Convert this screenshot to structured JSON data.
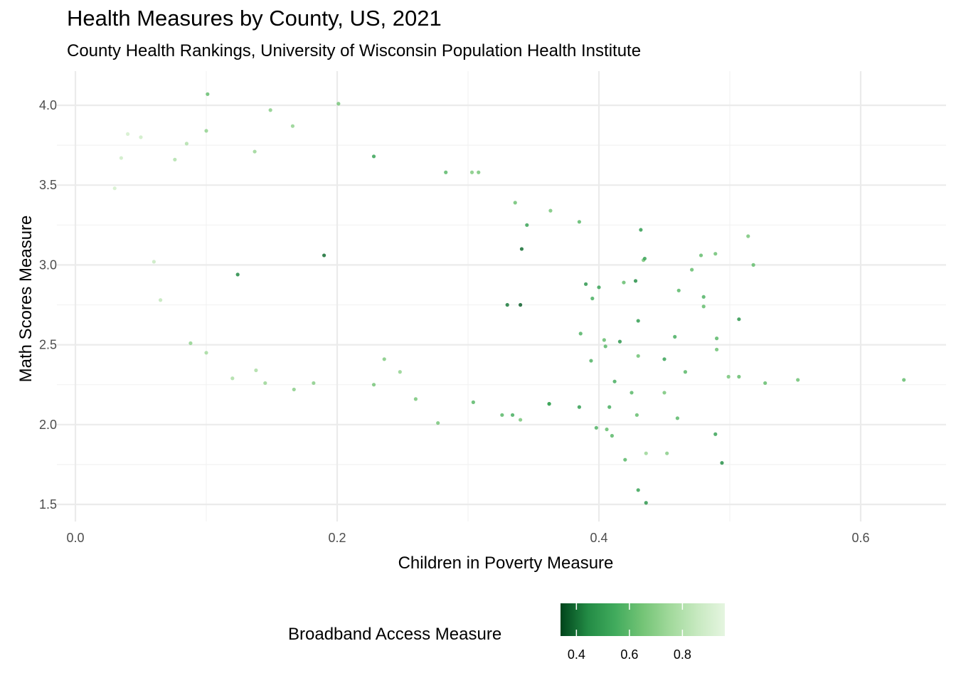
{
  "chart_data": {
    "type": "scatter",
    "title": "Health Measures by County, US, 2021",
    "subtitle": "County Health Rankings, University of Wisconsin Population Health Institute",
    "xlabel": "Children in Poverty Measure",
    "ylabel": "Math Scores Measure",
    "xlim": [
      0.0,
      0.66
    ],
    "ylim": [
      1.45,
      4.12
    ],
    "x_ticks": [
      0.0,
      0.2,
      0.4,
      0.6
    ],
    "x_tick_labels": [
      "0.0",
      "0.2",
      "0.4",
      "0.6"
    ],
    "y_ticks": [
      1.5,
      2.0,
      2.5,
      3.0,
      3.5,
      4.0
    ],
    "y_tick_labels": [
      "1.5",
      "2.0",
      "2.5",
      "3.0",
      "3.5",
      "4.0"
    ],
    "grid": true,
    "legend": {
      "title": "Broadband Access Measure",
      "placement": "bottom",
      "range": [
        0.34,
        0.96
      ],
      "ticks": [
        0.4,
        0.6,
        0.8
      ],
      "tick_labels": [
        "0.4",
        "0.6",
        "0.8"
      ],
      "colors": [
        "#00441b",
        "#238b45",
        "#41ab5d",
        "#74c476",
        "#a1d99b",
        "#c7e9c0",
        "#e5f5e0"
      ]
    },
    "points": [
      [
        0.101,
        4.07,
        0.62
      ],
      [
        0.201,
        4.01,
        0.66
      ],
      [
        0.149,
        3.97,
        0.7
      ],
      [
        0.1,
        3.84,
        0.72
      ],
      [
        0.166,
        3.87,
        0.72
      ],
      [
        0.04,
        3.82,
        0.9
      ],
      [
        0.05,
        3.8,
        0.88
      ],
      [
        0.137,
        3.71,
        0.74
      ],
      [
        0.228,
        3.68,
        0.52
      ],
      [
        0.303,
        3.58,
        0.68
      ],
      [
        0.308,
        3.58,
        0.66
      ],
      [
        0.283,
        3.58,
        0.6
      ],
      [
        0.336,
        3.39,
        0.64
      ],
      [
        0.363,
        3.34,
        0.66
      ],
      [
        0.432,
        3.22,
        0.5
      ],
      [
        0.514,
        3.18,
        0.66
      ],
      [
        0.385,
        3.27,
        0.6
      ],
      [
        0.518,
        3.0,
        0.62
      ],
      [
        0.478,
        3.06,
        0.62
      ],
      [
        0.489,
        3.07,
        0.64
      ],
      [
        0.434,
        3.03,
        0.66
      ],
      [
        0.435,
        3.04,
        0.52
      ],
      [
        0.471,
        2.97,
        0.62
      ],
      [
        0.458,
        2.55,
        0.56
      ],
      [
        0.419,
        2.89,
        0.62
      ],
      [
        0.416,
        2.52,
        0.48
      ],
      [
        0.461,
        2.84,
        0.6
      ],
      [
        0.48,
        2.8,
        0.58
      ],
      [
        0.48,
        2.74,
        0.62
      ],
      [
        0.507,
        2.66,
        0.48
      ],
      [
        0.49,
        2.54,
        0.6
      ],
      [
        0.49,
        2.47,
        0.64
      ],
      [
        0.45,
        2.41,
        0.52
      ],
      [
        0.466,
        2.33,
        0.6
      ],
      [
        0.499,
        2.3,
        0.66
      ],
      [
        0.507,
        2.3,
        0.62
      ],
      [
        0.527,
        2.26,
        0.62
      ],
      [
        0.552,
        2.28,
        0.64
      ],
      [
        0.633,
        2.28,
        0.62
      ],
      [
        0.45,
        2.2,
        0.66
      ],
      [
        0.46,
        2.04,
        0.6
      ],
      [
        0.429,
        2.06,
        0.62
      ],
      [
        0.489,
        1.94,
        0.52
      ],
      [
        0.494,
        1.76,
        0.46
      ],
      [
        0.436,
        1.82,
        0.74
      ],
      [
        0.452,
        1.82,
        0.7
      ],
      [
        0.42,
        1.78,
        0.6
      ],
      [
        0.43,
        1.59,
        0.52
      ],
      [
        0.436,
        1.51,
        0.48
      ],
      [
        0.398,
        1.98,
        0.58
      ],
      [
        0.406,
        1.97,
        0.62
      ],
      [
        0.41,
        1.93,
        0.6
      ],
      [
        0.408,
        2.11,
        0.56
      ],
      [
        0.385,
        2.11,
        0.5
      ],
      [
        0.362,
        2.13,
        0.54
      ],
      [
        0.362,
        2.13,
        0.52
      ],
      [
        0.34,
        2.03,
        0.66
      ],
      [
        0.334,
        2.06,
        0.56
      ],
      [
        0.326,
        2.06,
        0.6
      ],
      [
        0.277,
        2.01,
        0.66
      ],
      [
        0.304,
        2.14,
        0.6
      ],
      [
        0.26,
        2.16,
        0.66
      ],
      [
        0.34,
        2.75,
        0.38
      ],
      [
        0.341,
        3.1,
        0.4
      ],
      [
        0.19,
        3.06,
        0.4
      ],
      [
        0.124,
        2.94,
        0.44
      ],
      [
        0.33,
        2.75,
        0.42
      ],
      [
        0.39,
        2.88,
        0.48
      ],
      [
        0.43,
        2.65,
        0.5
      ],
      [
        0.428,
        2.9,
        0.46
      ],
      [
        0.4,
        2.86,
        0.52
      ],
      [
        0.345,
        3.25,
        0.52
      ],
      [
        0.395,
        2.79,
        0.56
      ],
      [
        0.386,
        2.57,
        0.58
      ],
      [
        0.405,
        2.49,
        0.6
      ],
      [
        0.404,
        2.53,
        0.62
      ],
      [
        0.43,
        2.43,
        0.64
      ],
      [
        0.425,
        2.2,
        0.6
      ],
      [
        0.412,
        2.27,
        0.56
      ],
      [
        0.394,
        2.4,
        0.58
      ],
      [
        0.088,
        2.51,
        0.72
      ],
      [
        0.1,
        2.45,
        0.76
      ],
      [
        0.065,
        2.78,
        0.84
      ],
      [
        0.06,
        3.02,
        0.86
      ],
      [
        0.076,
        3.66,
        0.8
      ],
      [
        0.085,
        3.76,
        0.8
      ],
      [
        0.035,
        3.67,
        0.88
      ],
      [
        0.03,
        3.48,
        0.9
      ],
      [
        0.138,
        2.34,
        0.78
      ],
      [
        0.12,
        2.29,
        0.78
      ],
      [
        0.145,
        2.26,
        0.74
      ],
      [
        0.167,
        2.22,
        0.7
      ],
      [
        0.182,
        2.26,
        0.7
      ],
      [
        0.228,
        2.25,
        0.66
      ],
      [
        0.236,
        2.41,
        0.68
      ],
      [
        0.248,
        2.33,
        0.72
      ]
    ]
  }
}
